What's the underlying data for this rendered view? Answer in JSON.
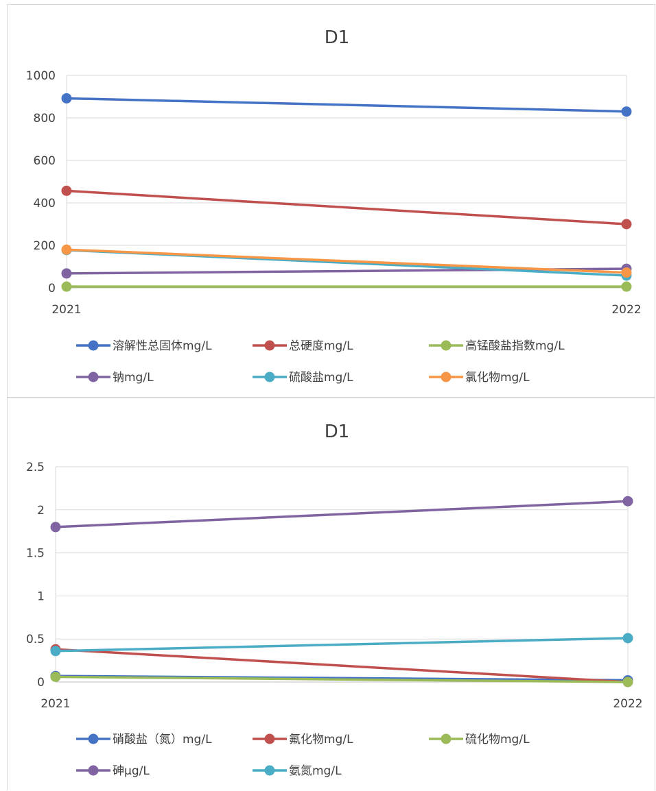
{
  "chart_data": [
    {
      "type": "line",
      "title": "D1",
      "categories": [
        "2021",
        "2022"
      ],
      "ylim": [
        0,
        1000
      ],
      "yticks": [
        "0",
        "200",
        "400",
        "600",
        "800",
        "1000"
      ],
      "grid": true,
      "legend_position": "bottom",
      "series": [
        {
          "name": "溶解性总固体mg/L",
          "color": "#4472c4",
          "values": [
            892,
            830
          ]
        },
        {
          "name": "总硬度mg/L",
          "color": "#c0504d",
          "values": [
            457,
            300
          ]
        },
        {
          "name": "高锰酸盐指数mg/L",
          "color": "#9bbb59",
          "values": [
            6,
            6
          ]
        },
        {
          "name": "钠mg/L",
          "color": "#8064a2",
          "values": [
            68,
            90
          ]
        },
        {
          "name": "硫酸盐mg/L",
          "color": "#4bacc6",
          "values": [
            178,
            58
          ]
        },
        {
          "name": "氯化物mg/L",
          "color": "#f79646",
          "values": [
            180,
            72
          ]
        }
      ]
    },
    {
      "type": "line",
      "title": "D1",
      "categories": [
        "2021",
        "2022"
      ],
      "ylim": [
        0,
        2.5
      ],
      "yticks": [
        "0",
        "0.5",
        "1",
        "1.5",
        "2",
        "2.5"
      ],
      "grid": true,
      "legend_position": "bottom",
      "series": [
        {
          "name": "硝酸盐（氮）mg/L",
          "color": "#4472c4",
          "values": [
            0.07,
            0.02
          ]
        },
        {
          "name": "氟化物mg/L",
          "color": "#c0504d",
          "values": [
            0.38,
            0.0
          ]
        },
        {
          "name": "硫化物mg/L",
          "color": "#9bbb59",
          "values": [
            0.06,
            0.0
          ]
        },
        {
          "name": "砷μg/L",
          "color": "#8064a2",
          "values": [
            1.8,
            2.1
          ]
        },
        {
          "name": "氨氮mg/L",
          "color": "#4bacc6",
          "values": [
            0.36,
            0.51
          ]
        }
      ]
    }
  ]
}
